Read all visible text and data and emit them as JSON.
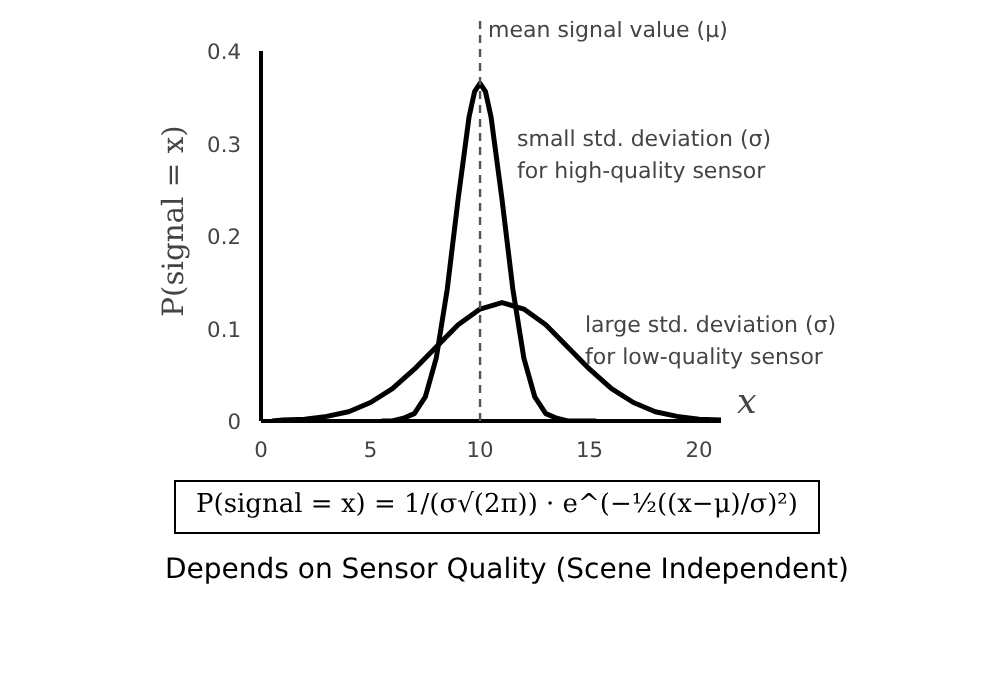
{
  "chart_data": {
    "type": "line",
    "ylabel": "P(signal = x)",
    "xlabel": "x",
    "xlim": [
      0,
      21
    ],
    "ylim": [
      0,
      0.4
    ],
    "xticks": [
      0,
      5,
      10,
      15,
      20
    ],
    "yticks": [
      0,
      0.1,
      0.2,
      0.3,
      0.4
    ],
    "grid": false,
    "marker": "none",
    "line_style": "solid",
    "series": [
      {
        "color": "#000000",
        "x": [
          5.5,
          6,
          6.5,
          7,
          7.5,
          8,
          8.5,
          9,
          9.5,
          9.75,
          10,
          10.25,
          10.5,
          11,
          11.5,
          12,
          12.5,
          13,
          13.5,
          14,
          15.3
        ],
        "values": [
          0,
          0,
          0.003,
          0.008,
          0.026,
          0.068,
          0.142,
          0.24,
          0.329,
          0.356,
          0.365,
          0.356,
          0.329,
          0.24,
          0.142,
          0.068,
          0.026,
          0.008,
          0.003,
          0,
          0
        ]
      },
      {
        "color": "#000000",
        "x": [
          0.5,
          1,
          2,
          3,
          4,
          5,
          6,
          7,
          8,
          9,
          10,
          11,
          12,
          13,
          14,
          15,
          16,
          17,
          18,
          19,
          20,
          21
        ],
        "values": [
          0,
          0.001,
          0.002,
          0.005,
          0.01,
          0.02,
          0.035,
          0.056,
          0.08,
          0.104,
          0.121,
          0.128,
          0.121,
          0.104,
          0.08,
          0.056,
          0.035,
          0.02,
          0.01,
          0.005,
          0.002,
          0.001
        ]
      }
    ],
    "ref_lines": [
      {
        "axis": "x",
        "value": 10,
        "label": "mean signal value (μ)",
        "color": "#555555",
        "line_style": "dashed"
      }
    ],
    "annotations": [
      "small std. deviation (σ)\nfor high-quality sensor",
      "large std. deviation (σ)\nfor low-quality sensor",
      "P(signal = x) = 1/(σ√(2π)) · e^(−½((x−μ)/σ)²)",
      "Depends on Sensor Quality (Scene Independent)"
    ]
  }
}
